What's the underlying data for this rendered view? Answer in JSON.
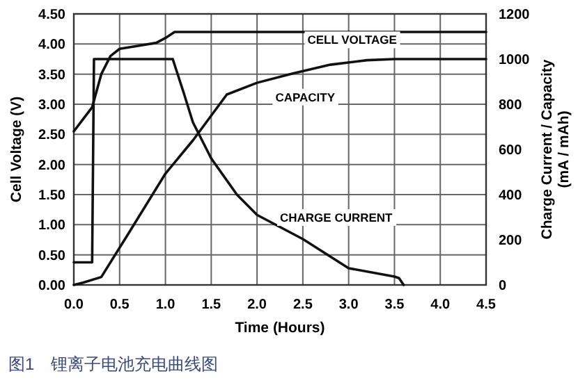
{
  "chart_data": {
    "type": "line",
    "title": "图1　锂离子电池充电曲线图",
    "xlabel": "Time (Hours)",
    "ylabel": "Cell Voltage (V)",
    "y2label": "Charge Current / Capacity\n(mA / mAh)",
    "xlim": [
      0,
      4.5
    ],
    "xticks": [
      {
        "value": 0,
        "label": "0.0"
      },
      {
        "value": 0.5,
        "label": "0.5"
      },
      {
        "value": 1,
        "label": "1.0"
      },
      {
        "value": 1.5,
        "label": "1.5"
      },
      {
        "value": 2,
        "label": "2.0"
      },
      {
        "value": 2.5,
        "label": "2.5"
      },
      {
        "value": 3,
        "label": "3.0"
      },
      {
        "value": 3.5,
        "label": "3.5"
      },
      {
        "value": 4,
        "label": "4.0"
      },
      {
        "value": 4.5,
        "label": "4.5"
      }
    ],
    "ylim": [
      0,
      4.5
    ],
    "yticks": [
      {
        "value": 0,
        "label": "0.00"
      },
      {
        "value": 0.5,
        "label": "0.50"
      },
      {
        "value": 1,
        "label": "1.00"
      },
      {
        "value": 1.5,
        "label": "1.50"
      },
      {
        "value": 2,
        "label": "2.00"
      },
      {
        "value": 2.5,
        "label": "2.50"
      },
      {
        "value": 3,
        "label": "3.00"
      },
      {
        "value": 3.5,
        "label": "3.50"
      },
      {
        "value": 4,
        "label": "4.00"
      },
      {
        "value": 4.5,
        "label": "4.50"
      }
    ],
    "y2lim": [
      0,
      1200
    ],
    "y2ticks": [
      0,
      200,
      400,
      600,
      800,
      1000,
      1200
    ],
    "grid": true,
    "line_style": "solid",
    "series": [
      {
        "name": "CELL VOLTAGE",
        "color": "#111111",
        "x": [
          0,
          0.1,
          0.2,
          0.3,
          0.4,
          0.5,
          0.7,
          0.9,
          1.0,
          1.1,
          4.5
        ],
        "values": [
          2.55,
          2.75,
          2.95,
          3.5,
          3.8,
          3.92,
          3.97,
          4.02,
          4.1,
          4.2,
          4.2
        ]
      },
      {
        "name": "CAPACITY",
        "color": "#111111",
        "axis": "y2",
        "x": [
          0,
          0.1,
          0.3,
          0.6,
          1.0,
          1.3,
          1.67,
          2.0,
          2.39,
          2.8,
          3.2,
          3.5,
          4.5
        ],
        "values": [
          0,
          10,
          35,
          230,
          493,
          640,
          843,
          895,
          936,
          975,
          995,
          1000,
          1000
        ]
      },
      {
        "name": "CHARGE CURRENT",
        "color": "#111111",
        "axis": "y2",
        "x": [
          0,
          0.2,
          0.22,
          0.4,
          1.08,
          1.2,
          1.3,
          1.5,
          1.78,
          2.0,
          2.5,
          3.0,
          3.5,
          3.55,
          3.6
        ],
        "values": [
          100,
          100,
          1000,
          1000,
          1000,
          850,
          720,
          560,
          400,
          310,
          203,
          74,
          37,
          30,
          0
        ]
      }
    ]
  }
}
